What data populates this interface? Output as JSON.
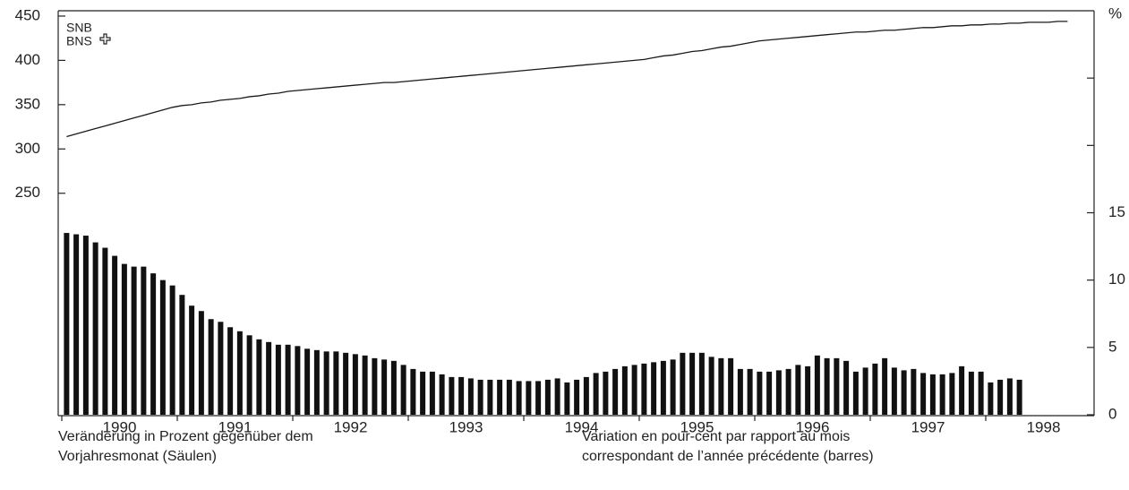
{
  "chart_data": {
    "type": "bar",
    "logo": [
      "SNB",
      "BNS"
    ],
    "unit": "%",
    "captions": [
      [
        "Veränderung in Prozent gegenüber dem",
        "Vorjahresmonat (Säulen)"
      ],
      [
        "Variation en pour-cent par rapport au mois",
        "correspondant de l’année précédente (barres)"
      ]
    ],
    "categories": [
      null,
      null,
      null,
      null,
      null,
      null,
      "1990",
      null,
      null,
      null,
      null,
      null,
      null,
      null,
      null,
      null,
      null,
      null,
      "1991",
      null,
      null,
      null,
      null,
      null,
      null,
      null,
      null,
      null,
      null,
      null,
      "1992",
      null,
      null,
      null,
      null,
      null,
      null,
      null,
      null,
      null,
      null,
      null,
      "1993",
      null,
      null,
      null,
      null,
      null,
      null,
      null,
      null,
      null,
      null,
      null,
      "1994",
      null,
      null,
      null,
      null,
      null,
      null,
      null,
      null,
      null,
      null,
      null,
      "1995",
      null,
      null,
      null,
      null,
      null,
      null,
      null,
      null,
      null,
      null,
      null,
      "1996",
      null,
      null,
      null,
      null,
      null,
      null,
      null,
      null,
      null,
      null,
      null,
      "1997",
      null,
      null,
      null,
      null,
      null,
      null,
      null,
      null,
      null,
      null,
      null,
      "1998",
      null,
      null,
      null,
      null,
      null
    ],
    "ylim": [
      0,
      456
    ],
    "yticks": [
      250,
      300,
      350,
      400,
      450
    ],
    "y2lim": [
      0,
      30
    ],
    "y2ticks": [
      0,
      5,
      10,
      15
    ],
    "y2minor_ticks": [
      20,
      25
    ],
    "series": [
      {
        "type": "line",
        "color": "#1a1a1a",
        "values": [
          314,
          317,
          320,
          323,
          326,
          329,
          332,
          335,
          338,
          341,
          344,
          347,
          349,
          350,
          352,
          353,
          355,
          356,
          357,
          359,
          360,
          362,
          363,
          365,
          366,
          367,
          368,
          369,
          370,
          371,
          372,
          373,
          374,
          375,
          375,
          376,
          377,
          378,
          379,
          380,
          381,
          382,
          383,
          384,
          385,
          386,
          387,
          388,
          389,
          390,
          391,
          392,
          393,
          394,
          395,
          396,
          397,
          398,
          399,
          400,
          401,
          403,
          405,
          406,
          408,
          410,
          411,
          413,
          415,
          416,
          418,
          420,
          422,
          423,
          424,
          425,
          426,
          427,
          428,
          429,
          430,
          431,
          432,
          432,
          433,
          434,
          434,
          435,
          436,
          437,
          437,
          438,
          439,
          439,
          440,
          440,
          441,
          441,
          442,
          442,
          443,
          443,
          443,
          444,
          444,
          null,
          null,
          null
        ]
      },
      {
        "type": "bar",
        "axis": "y2",
        "color": "#111111",
        "values": [
          13.5,
          13.4,
          13.3,
          12.8,
          12.4,
          11.8,
          11.2,
          11.0,
          11.0,
          10.5,
          10.0,
          9.6,
          8.9,
          8.1,
          7.7,
          7.1,
          6.9,
          6.5,
          6.2,
          5.9,
          5.6,
          5.4,
          5.2,
          5.2,
          5.1,
          4.9,
          4.8,
          4.7,
          4.7,
          4.6,
          4.5,
          4.4,
          4.2,
          4.1,
          4.0,
          3.7,
          3.4,
          3.2,
          3.2,
          3.0,
          2.8,
          2.8,
          2.7,
          2.6,
          2.6,
          2.6,
          2.6,
          2.5,
          2.5,
          2.5,
          2.6,
          2.7,
          2.4,
          2.6,
          2.8,
          3.1,
          3.2,
          3.4,
          3.6,
          3.7,
          3.8,
          3.9,
          4.0,
          4.1,
          4.6,
          4.6,
          4.6,
          4.3,
          4.2,
          4.2,
          3.4,
          3.4,
          3.2,
          3.2,
          3.3,
          3.4,
          3.7,
          3.6,
          4.4,
          4.2,
          4.2,
          4.0,
          3.2,
          3.5,
          3.8,
          4.2,
          3.5,
          3.3,
          3.4,
          3.1,
          3.0,
          3.0,
          3.1,
          3.6,
          3.2,
          3.2,
          2.4,
          2.6,
          2.7,
          2.6,
          null,
          null,
          null,
          null,
          null,
          null,
          null,
          null
        ]
      }
    ]
  }
}
